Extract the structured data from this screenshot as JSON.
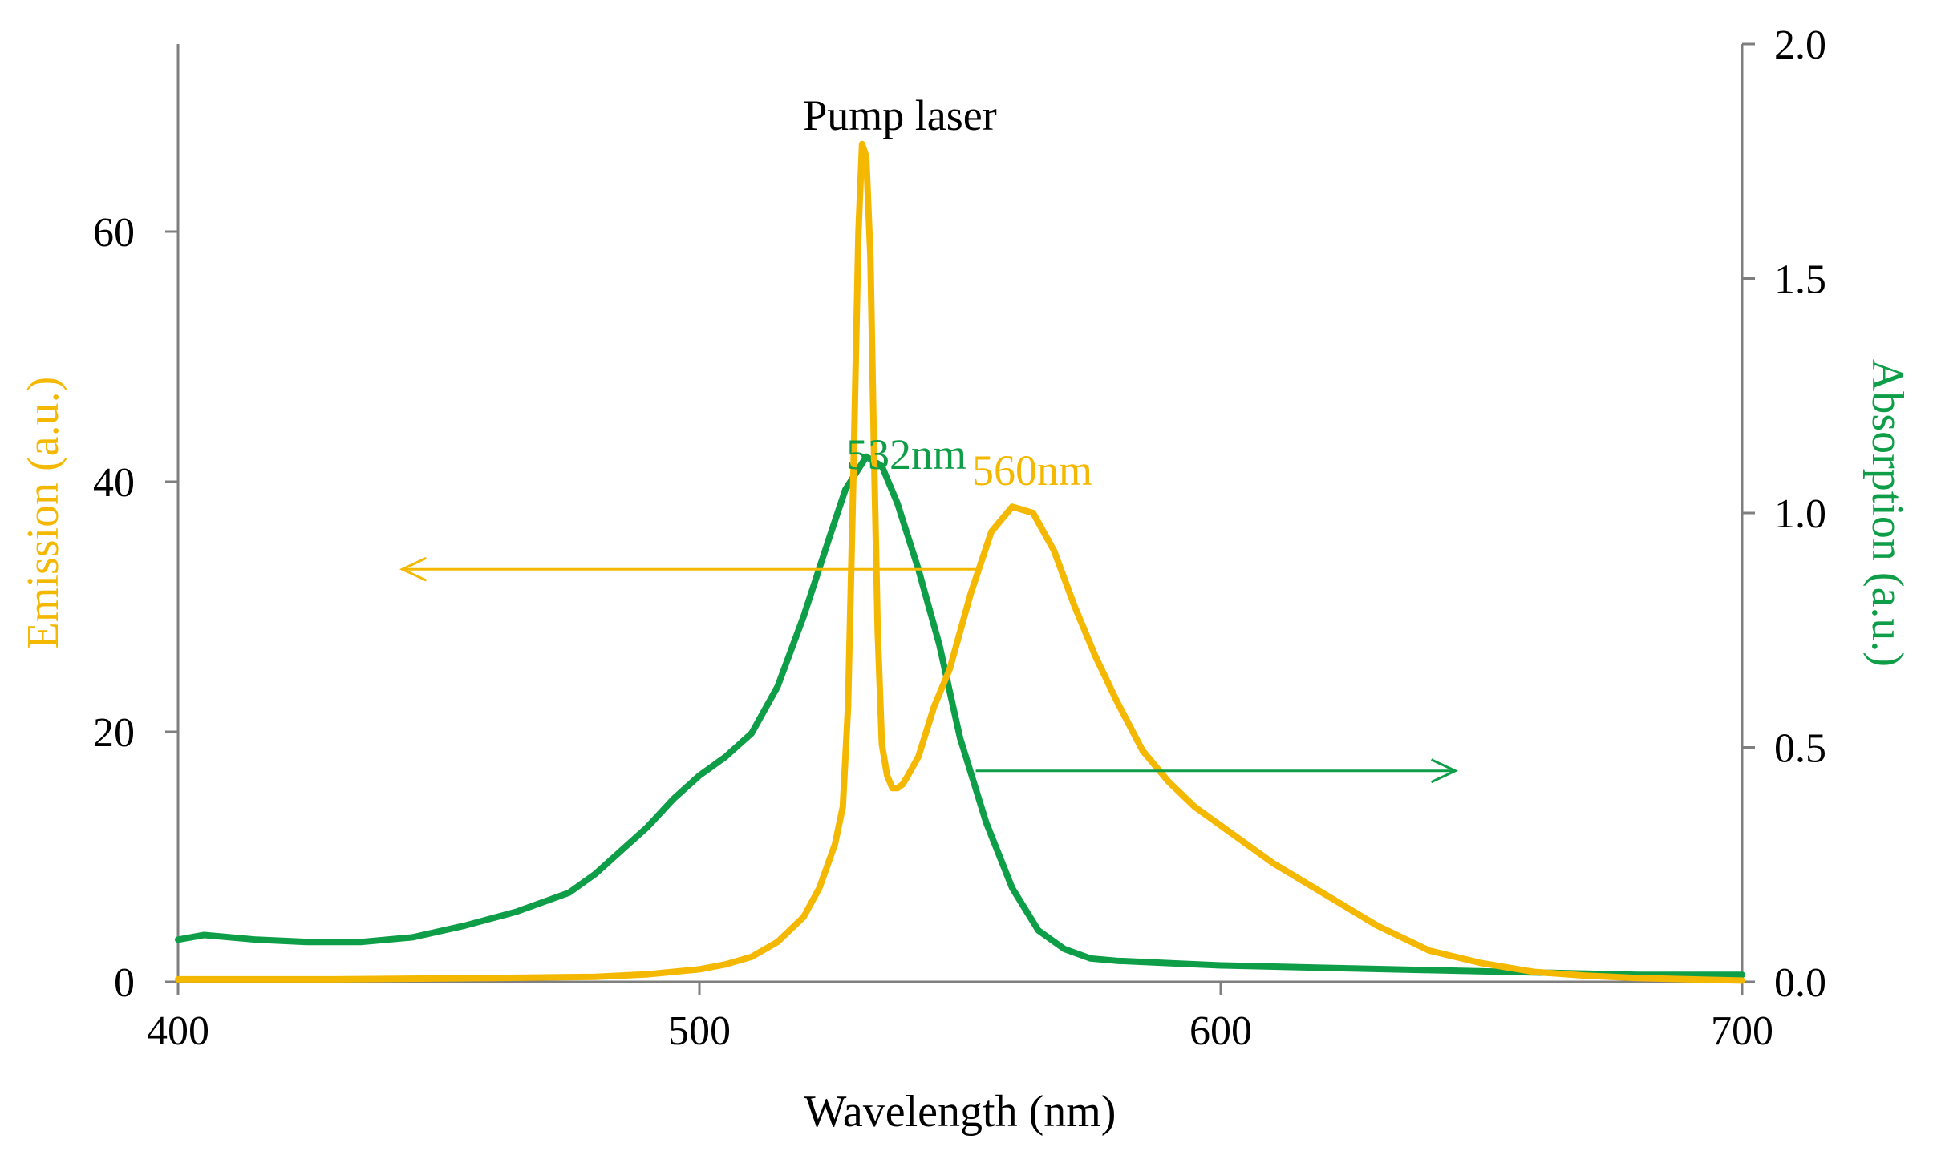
{
  "chart_data": {
    "type": "line",
    "xlabel": "Wavelength (nm)",
    "ylabel_left": "Emission (a.u.)",
    "ylabel_right": "Absorption (a.u.)",
    "xlim": [
      400,
      700
    ],
    "ylim_left": [
      0,
      75
    ],
    "ylim_right": [
      0,
      2.0
    ],
    "x_ticks": [
      "400",
      "500",
      "600",
      "700"
    ],
    "y_left_ticks": [
      "0",
      "20",
      "40",
      "60"
    ],
    "y_right_ticks": [
      "0.0",
      "0.5",
      "1.0",
      "1.5",
      "2.0"
    ],
    "grid": false,
    "colors": {
      "emission": "#F5B800",
      "absorption": "#0E9E48"
    },
    "series": [
      {
        "name": "Emission",
        "axis": "left",
        "color": "#F5B800",
        "x": [
          400,
          430,
          460,
          480,
          490,
          500,
          505,
          510,
          515,
          520,
          523,
          526,
          527.5,
          528.5,
          529.5,
          530.5,
          531.2,
          532,
          532.8,
          533.5,
          534.2,
          535,
          536,
          537,
          538,
          539,
          540,
          542,
          545,
          548,
          552,
          556,
          560,
          564,
          568,
          572,
          576,
          580,
          585,
          590,
          595,
          600,
          610,
          620,
          630,
          640,
          650,
          660,
          670,
          680,
          690,
          700
        ],
        "values": [
          0.2,
          0.2,
          0.3,
          0.4,
          0.6,
          1.0,
          1.4,
          2.0,
          3.2,
          5.2,
          7.5,
          11,
          14,
          22,
          40,
          60,
          67,
          66,
          58,
          42,
          28,
          19,
          16.5,
          15.5,
          15.5,
          15.8,
          16.5,
          18,
          22,
          25,
          31,
          36,
          38,
          37.5,
          34.5,
          30,
          26,
          22.5,
          18.5,
          16,
          14,
          12.5,
          9.5,
          7,
          4.5,
          2.5,
          1.5,
          0.8,
          0.5,
          0.3,
          0.2,
          0.1
        ]
      },
      {
        "name": "Absorption",
        "axis": "right",
        "color": "#0E9E48",
        "x": [
          400,
          405,
          415,
          425,
          435,
          445,
          455,
          465,
          475,
          480,
          485,
          490,
          495,
          500,
          505,
          510,
          515,
          520,
          525,
          528,
          532,
          535,
          538,
          542,
          546,
          550,
          555,
          560,
          565,
          570,
          575,
          580,
          590,
          600,
          620,
          640,
          660,
          680,
          700
        ],
        "values": [
          0.09,
          0.1,
          0.09,
          0.085,
          0.085,
          0.095,
          0.12,
          0.15,
          0.19,
          0.23,
          0.28,
          0.33,
          0.39,
          0.44,
          0.48,
          0.53,
          0.63,
          0.78,
          0.95,
          1.05,
          1.12,
          1.1,
          1.02,
          0.88,
          0.72,
          0.52,
          0.34,
          0.2,
          0.11,
          0.07,
          0.05,
          0.045,
          0.04,
          0.035,
          0.03,
          0.025,
          0.02,
          0.015,
          0.015
        ]
      }
    ],
    "annotations": {
      "pump_laser": "Pump laser",
      "peak_532": "532nm",
      "peak_560": "560nm"
    },
    "arrows": [
      {
        "name": "emission-arrow",
        "axis": "left",
        "from_x": 553,
        "to_x": 443,
        "y": 33,
        "color": "#F5B800"
      },
      {
        "name": "absorption-arrow",
        "axis": "right",
        "from_x": 553,
        "to_x": 645,
        "y": 0.45,
        "color": "#0E9E48"
      }
    ]
  }
}
